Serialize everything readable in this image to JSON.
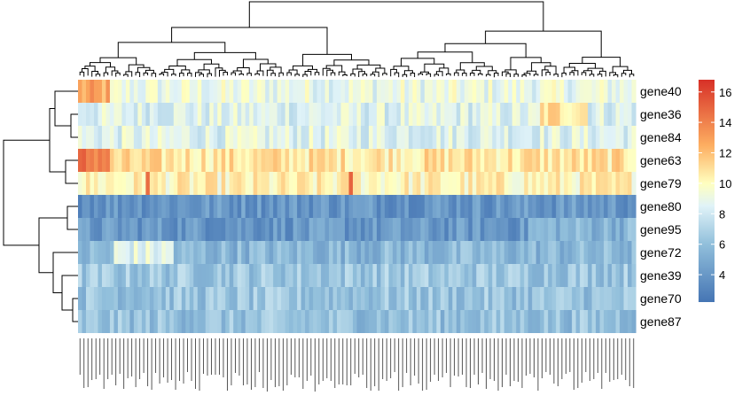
{
  "chart_data": {
    "type": "heatmap",
    "title": "",
    "rows": [
      "gene40",
      "gene36",
      "gene84",
      "gene63",
      "gene79",
      "gene80",
      "gene95",
      "gene72",
      "gene39",
      "gene70",
      "gene87"
    ],
    "row_base_values": [
      9.0,
      8.5,
      8.6,
      10.8,
      10.2,
      4.0,
      4.0,
      5.6,
      6.4,
      6.2,
      6.1
    ],
    "column_count": 140,
    "column_labels": "sample IDs printed vertically (illegible at this resolution)",
    "color_scale": {
      "min": 2.2,
      "max": 16.8,
      "stops": [
        {
          "value": 2.2,
          "color": "#4575b4"
        },
        {
          "value": 6.0,
          "color": "#91bfdb"
        },
        {
          "value": 8.5,
          "color": "#e0f3f8"
        },
        {
          "value": 10.0,
          "color": "#ffffbf"
        },
        {
          "value": 12.5,
          "color": "#fdae61"
        },
        {
          "value": 16.8,
          "color": "#d73027"
        }
      ]
    },
    "legend": {
      "ticks": [
        "4",
        "6",
        "8",
        "10",
        "12",
        "14",
        "16"
      ],
      "tick_values": [
        4,
        6,
        8,
        10,
        12,
        14,
        16
      ],
      "position": "right"
    },
    "row_dendrogram": true,
    "column_dendrogram": true
  }
}
